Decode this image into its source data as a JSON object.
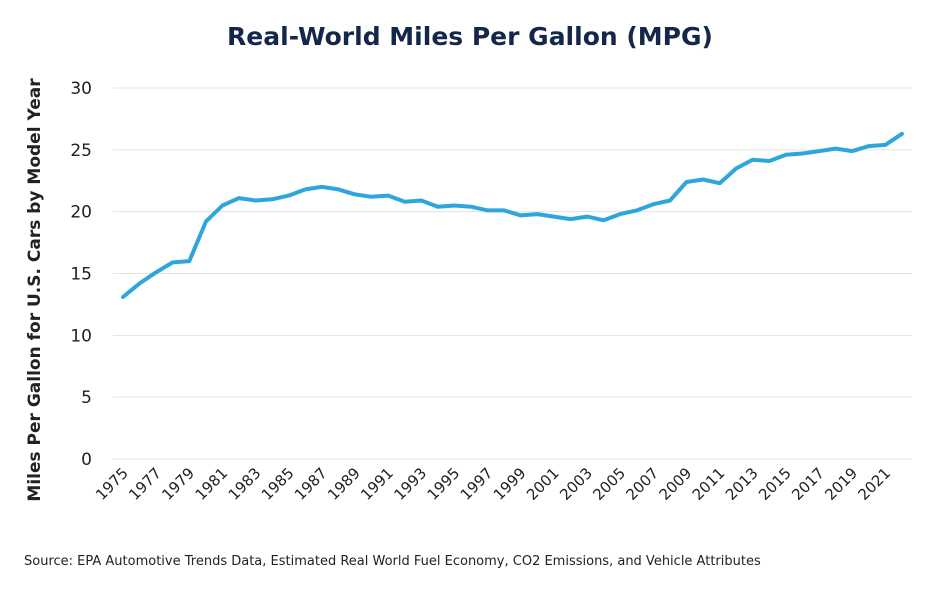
{
  "chart_data": {
    "type": "line",
    "title": "Real-World Miles Per Gallon (MPG)",
    "xlabel": "",
    "ylabel": "Miles Per Gallon for U.S. Cars by Model Year",
    "ylim": [
      0,
      30
    ],
    "yticks": [
      0,
      5,
      10,
      15,
      20,
      25,
      30
    ],
    "x_tick_labels": [
      "1975",
      "1977",
      "1979",
      "1981",
      "1983",
      "1985",
      "1987",
      "1989",
      "1991",
      "1993",
      "1995",
      "1997",
      "1999",
      "2001",
      "2003",
      "2005",
      "2007",
      "2009",
      "2011",
      "2013",
      "2015",
      "2017",
      "2019",
      "2021"
    ],
    "grid": true,
    "legend": "none",
    "line_color": "#2fa6db",
    "x": [
      1975,
      1976,
      1977,
      1978,
      1979,
      1980,
      1981,
      1982,
      1983,
      1984,
      1985,
      1986,
      1987,
      1988,
      1989,
      1990,
      1991,
      1992,
      1993,
      1994,
      1995,
      1996,
      1997,
      1998,
      1999,
      2000,
      2001,
      2002,
      2003,
      2004,
      2005,
      2006,
      2007,
      2008,
      2009,
      2010,
      2011,
      2012,
      2013,
      2014,
      2015,
      2016,
      2017,
      2018,
      2019,
      2020,
      2021,
      2022
    ],
    "series": [
      {
        "values": [
          13.1,
          14.2,
          15.1,
          15.9,
          16.0,
          19.2,
          20.5,
          21.1,
          20.9,
          21.0,
          21.3,
          21.8,
          22.0,
          21.8,
          21.4,
          21.2,
          21.3,
          20.8,
          20.9,
          20.4,
          20.5,
          20.4,
          20.1,
          20.1,
          19.7,
          19.8,
          19.6,
          19.4,
          19.6,
          19.3,
          19.8,
          20.1,
          20.6,
          20.9,
          22.4,
          22.6,
          22.3,
          23.5,
          24.2,
          24.1,
          24.6,
          24.7,
          24.9,
          25.1,
          24.9,
          25.3,
          25.4,
          26.3
        ]
      }
    ],
    "source": "Source: EPA Automotive Trends Data, Estimated Real World Fuel Economy, CO2 Emissions, and Vehicle Attributes"
  }
}
